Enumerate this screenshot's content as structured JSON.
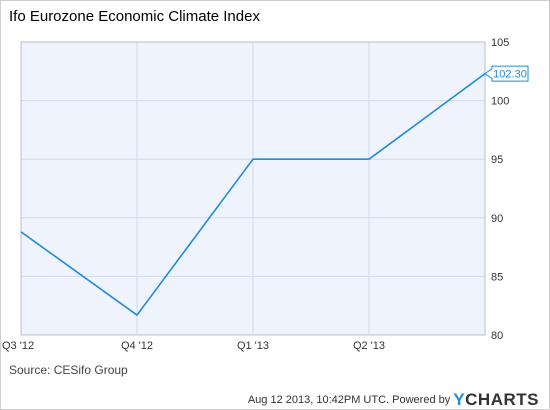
{
  "header": {
    "title": "Ifo Eurozone Economic Climate Index"
  },
  "source": "Source: CESifo Group",
  "footer": {
    "timestamp": "Aug 12 2013, 10:42PM UTC.",
    "powered_by": "Powered by",
    "brand_prefix": "Y",
    "brand_name": "CHARTS"
  },
  "colors": {
    "line": "#1f8ad6",
    "plot_background": "#eef3fd",
    "grid": "#d3dae8",
    "brand": "#1f8ad6"
  },
  "chart_data": {
    "type": "line",
    "title": "Ifo Eurozone Economic Climate Index",
    "categories": [
      "Q3 '12",
      "Q4 '12",
      "Q1 '13",
      "Q2 '13",
      ""
    ],
    "values": [
      88.8,
      81.7,
      95.0,
      95.0,
      102.3
    ],
    "last_value_label": "102.30",
    "yticks": [
      80,
      85,
      90,
      95,
      100,
      105
    ],
    "ylim": [
      80,
      105
    ],
    "yaxis_position": "right",
    "grid": true,
    "legend": "none"
  }
}
